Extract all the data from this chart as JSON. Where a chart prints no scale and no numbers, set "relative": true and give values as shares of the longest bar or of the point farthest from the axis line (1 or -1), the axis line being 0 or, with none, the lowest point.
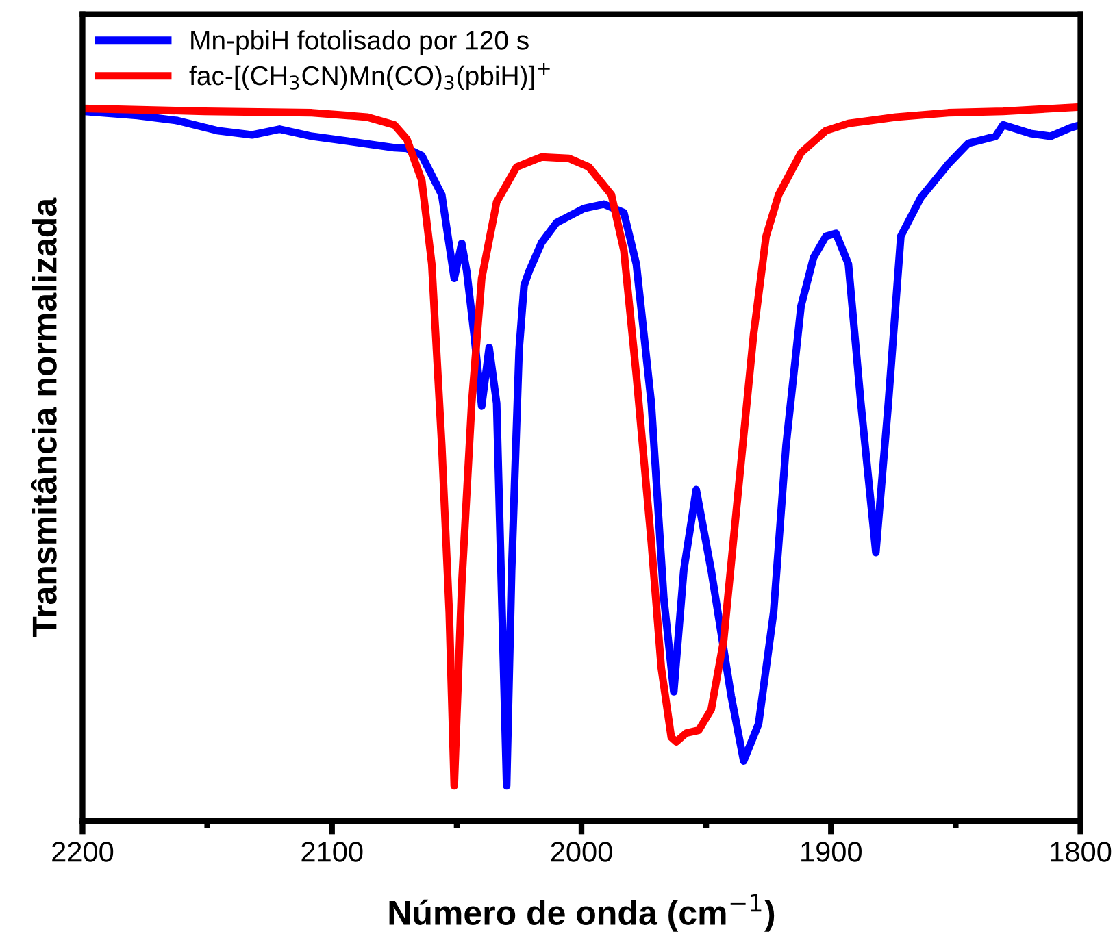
{
  "chart_data": {
    "type": "line",
    "xlabel": "Número de onda (cm$^{−1}$)",
    "ylabel": "Transmitância normalizada",
    "relative": true,
    "xlim": [
      2200,
      1800
    ],
    "xticks": [
      2200,
      2100,
      2000,
      1900,
      1800
    ],
    "tick_labels": "x",
    "legend": "top left",
    "grid": false,
    "marker": "none",
    "line_style": "solid",
    "series": [
      {
        "name": "Mn-pbiH fotolisado por 120 s",
        "color": "#0000ff",
        "x": [
          2200,
          2178,
          2162,
          2146,
          2132,
          2121,
          2108,
          2091,
          2075,
          2070,
          2064,
          2056,
          2051,
          2048,
          2046,
          2043,
          2040,
          2037,
          2034,
          2030,
          2028,
          2025,
          2023,
          2021,
          2016,
          2010,
          1999,
          1991,
          1983,
          1978,
          1972,
          1967,
          1963,
          1959,
          1954,
          1948,
          1940,
          1935,
          1929,
          1923,
          1918,
          1912,
          1907,
          1902,
          1898,
          1893,
          1888,
          1882,
          1877,
          1872,
          1864,
          1853,
          1845,
          1834,
          1831,
          1820,
          1812,
          1804,
          1800
        ],
        "values": [
          0.994,
          0.988,
          0.981,
          0.967,
          0.961,
          0.969,
          0.959,
          0.951,
          0.943,
          0.942,
          0.932,
          0.877,
          0.76,
          0.809,
          0.77,
          0.68,
          0.581,
          0.663,
          0.585,
          0.049,
          0.35,
          0.66,
          0.75,
          0.77,
          0.81,
          0.838,
          0.858,
          0.864,
          0.852,
          0.78,
          0.585,
          0.312,
          0.181,
          0.351,
          0.464,
          0.351,
          0.175,
          0.084,
          0.136,
          0.292,
          0.526,
          0.721,
          0.789,
          0.819,
          0.823,
          0.78,
          0.585,
          0.376,
          0.585,
          0.819,
          0.873,
          0.92,
          0.949,
          0.959,
          0.975,
          0.963,
          0.959,
          0.971,
          0.975
        ]
      },
      {
        "name": "fac-[(CH$_{3}$CN)Mn(CO)$_{3}$(pbiH)]$^{+}$",
        "color": "#ff0000",
        "x": [
          2200,
          2151,
          2108,
          2086,
          2075,
          2070,
          2064,
          2060,
          2056,
          2053,
          2051,
          2048,
          2044,
          2040,
          2034,
          2026,
          2016,
          2005,
          1997,
          1988,
          1983,
          1978,
          1972,
          1968,
          1964,
          1962,
          1958,
          1953,
          1948,
          1943,
          1937,
          1931,
          1926,
          1921,
          1912,
          1902,
          1893,
          1874,
          1853,
          1831,
          1800
        ],
        "values": [
          0.998,
          0.994,
          0.992,
          0.986,
          0.975,
          0.955,
          0.897,
          0.78,
          0.526,
          0.292,
          0.049,
          0.331,
          0.585,
          0.76,
          0.867,
          0.916,
          0.93,
          0.928,
          0.916,
          0.877,
          0.799,
          0.624,
          0.39,
          0.214,
          0.117,
          0.111,
          0.123,
          0.127,
          0.156,
          0.253,
          0.468,
          0.682,
          0.819,
          0.877,
          0.936,
          0.967,
          0.977,
          0.986,
          0.992,
          0.994,
          1.0
        ]
      }
    ]
  }
}
